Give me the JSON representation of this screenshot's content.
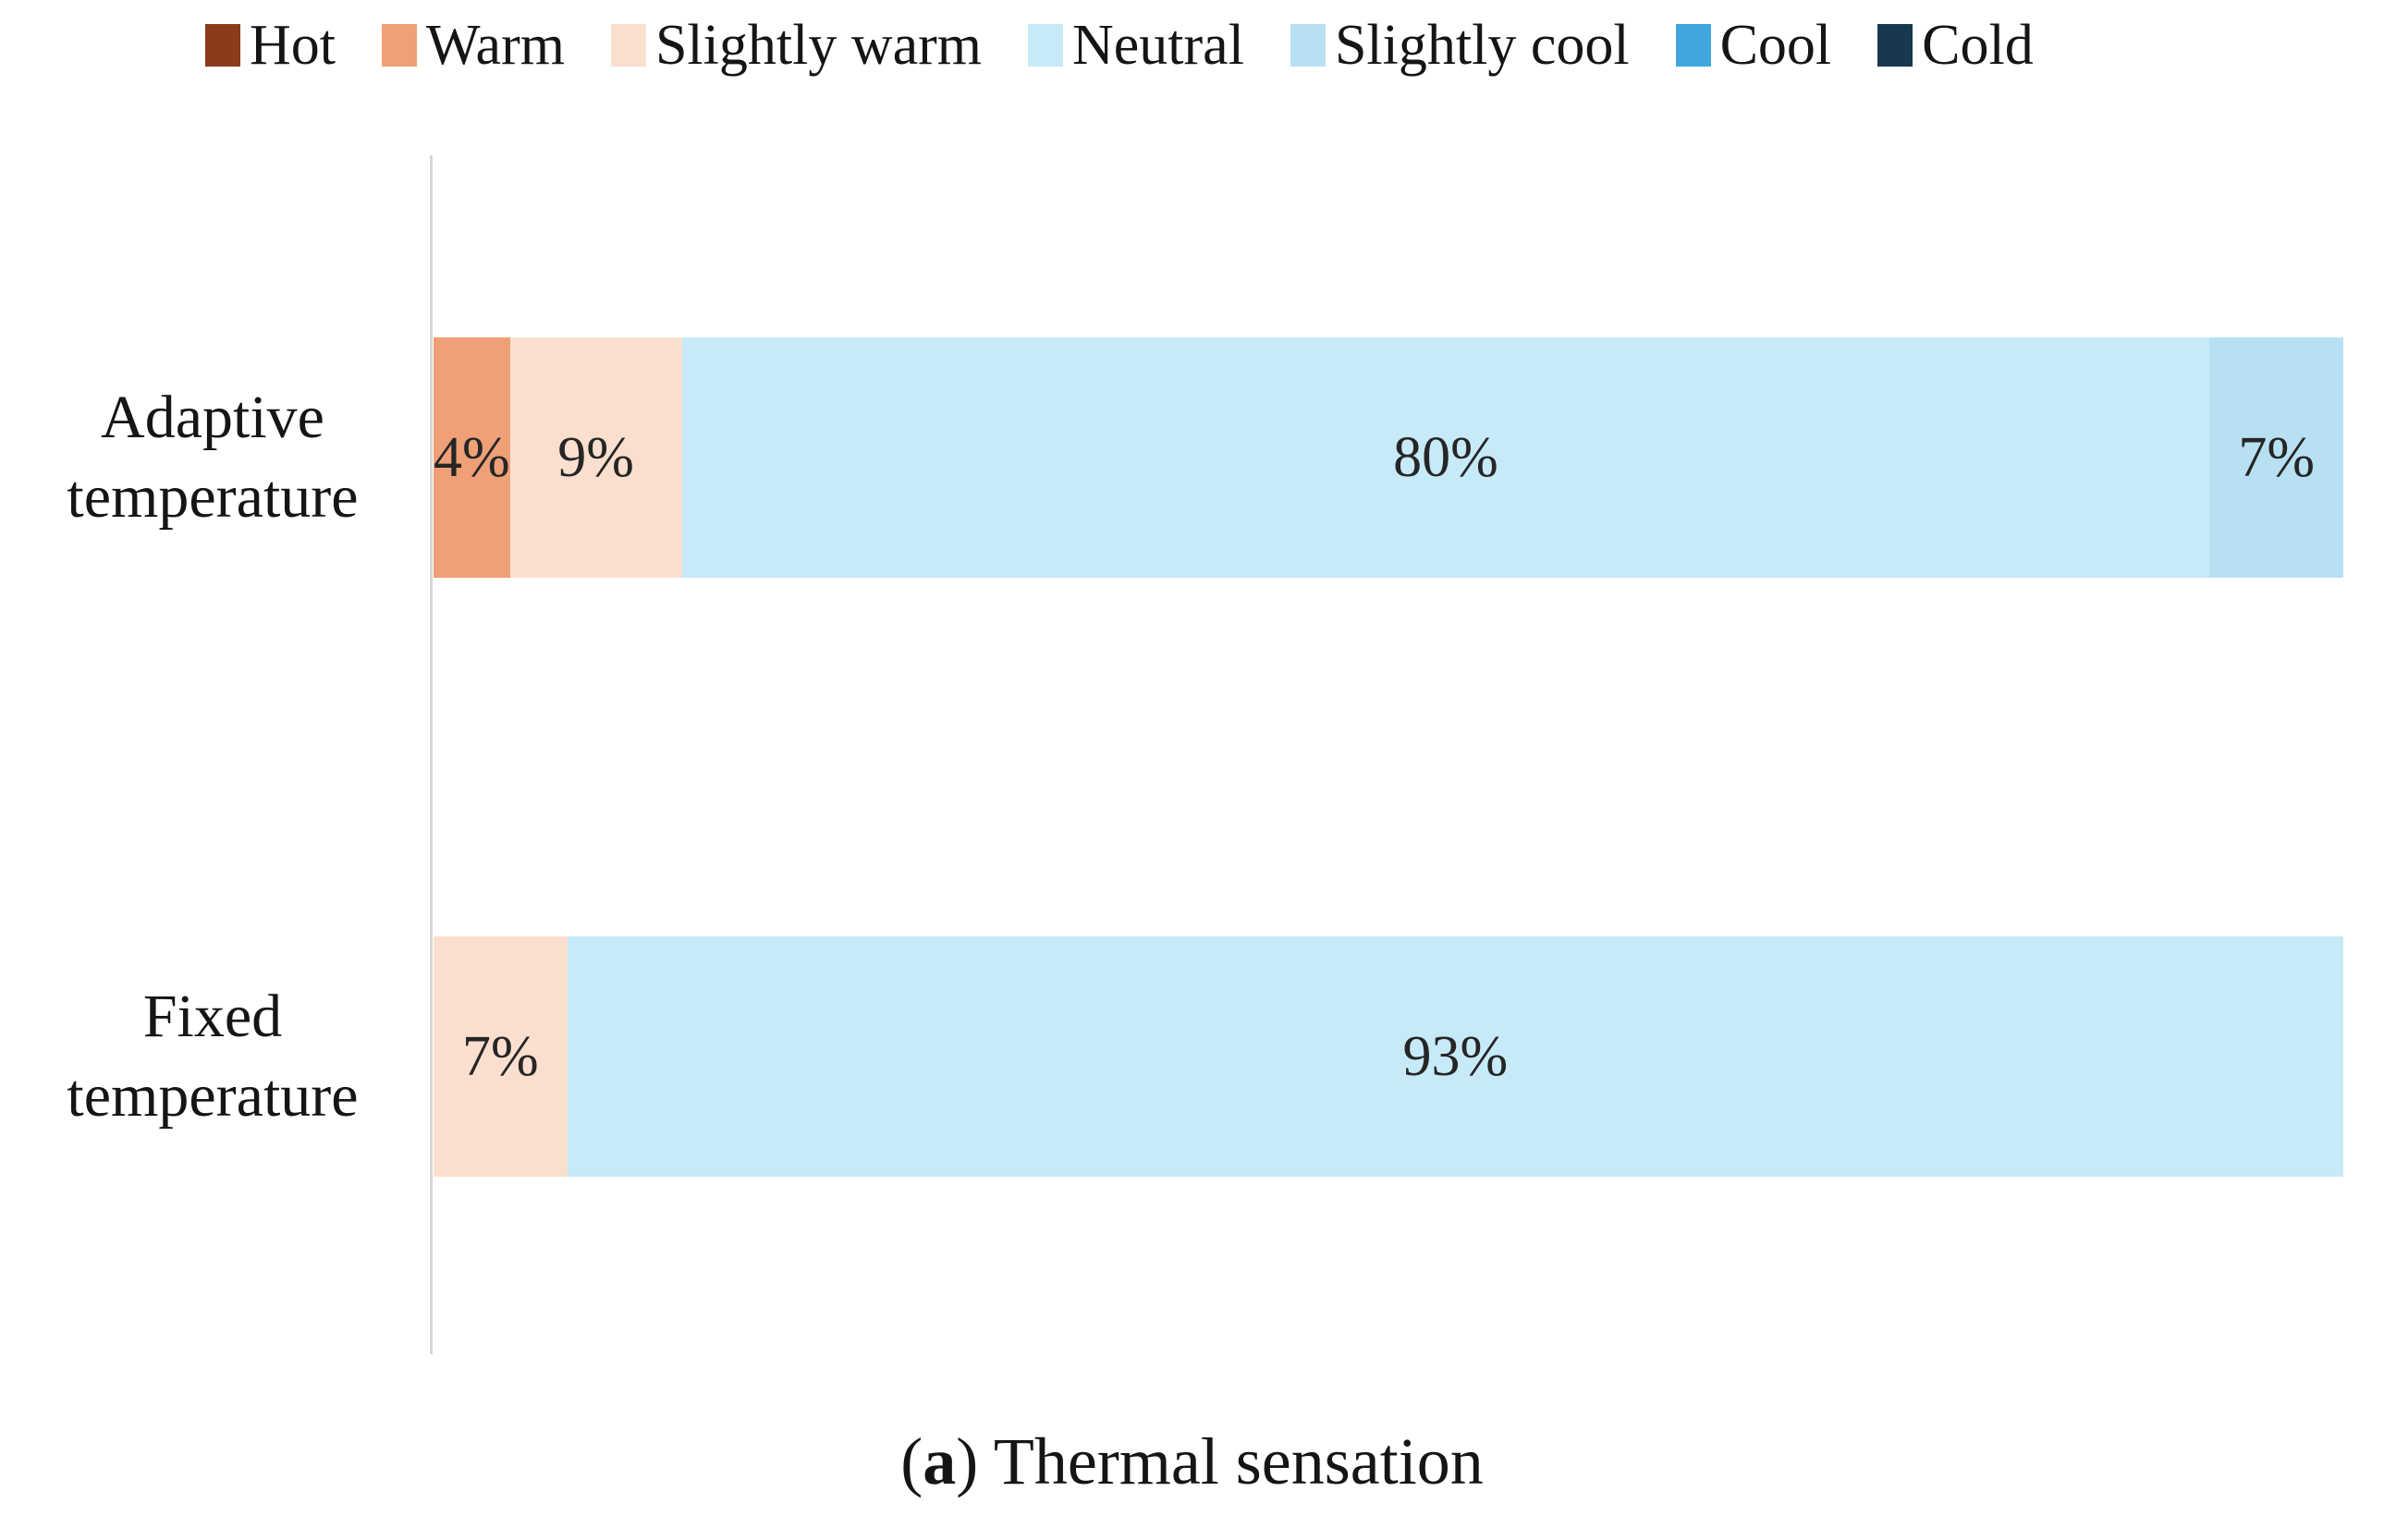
{
  "figure": {
    "caption": {
      "prefix": "(",
      "letter": "a",
      "suffix": ") Thermal sensation"
    }
  },
  "chart_data": {
    "type": "bar",
    "orientation": "horizontal_stacked",
    "unit": "percent",
    "xlim": [
      0,
      100
    ],
    "grid": false,
    "legend_position": "top",
    "title": "(a) Thermal sensation",
    "axis_line_color": "#d6d6d6",
    "legend": [
      {
        "label": "Hot",
        "color": "#8c3a1c"
      },
      {
        "label": "Warm",
        "color": "#efa077"
      },
      {
        "label": "Slightly warm",
        "color": "#fbdfce"
      },
      {
        "label": "Neutral",
        "color": "#c7eaf9"
      },
      {
        "label": "Slightly cool",
        "color": "#b7e1f2"
      },
      {
        "label": "Cool",
        "color": "#3fa7dd"
      },
      {
        "label": "Cold",
        "color": "#17384e"
      }
    ],
    "colors": {
      "Hot": "#8c3a1c",
      "Warm": "#efa077",
      "Slightly warm": "#fbdfce",
      "Neutral": "#c7eaf9",
      "Slightly cool": "#b7e1f2",
      "Cool": "#3fa7dd",
      "Cold": "#17384e"
    },
    "bars": [
      {
        "category": "Adaptive temperature",
        "category_lines": [
          "Adaptive",
          "temperature"
        ],
        "segments": [
          {
            "series": "Warm",
            "value": 4,
            "label": "4%"
          },
          {
            "series": "Slightly warm",
            "value": 9,
            "label": "9%"
          },
          {
            "series": "Neutral",
            "value": 80,
            "label": "80%"
          },
          {
            "series": "Slightly cool",
            "value": 7,
            "label": "7%"
          }
        ]
      },
      {
        "category": "Fixed temperature",
        "category_lines": [
          "Fixed",
          "temperature"
        ],
        "segments": [
          {
            "series": "Slightly warm",
            "value": 7,
            "label": "7%"
          },
          {
            "series": "Neutral",
            "value": 93,
            "label": "93%"
          }
        ]
      }
    ]
  }
}
